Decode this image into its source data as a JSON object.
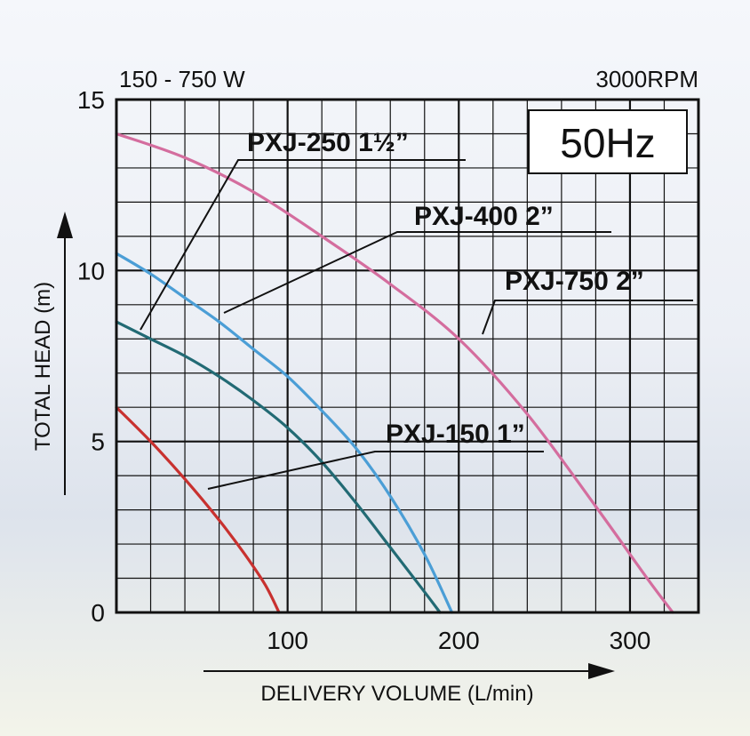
{
  "chart_data": {
    "type": "line",
    "power_label": "150 - 750 W",
    "speed_label": "3000RPM",
    "frequency_label": "50Hz",
    "xlabel": "DELIVERY VOLUME (L/min)",
    "ylabel": "TOTAL HEAD (m)",
    "xlim": [
      0,
      340
    ],
    "ylim": [
      0,
      15
    ],
    "x_ticks": [
      100,
      200,
      300
    ],
    "y_ticks": [
      0,
      5,
      10,
      15
    ],
    "grid": true,
    "series": [
      {
        "name": "PXJ-150 1”",
        "color": "#c8312f",
        "points": [
          [
            0,
            6.0
          ],
          [
            20,
            5.0
          ],
          [
            40,
            3.9
          ],
          [
            60,
            2.7
          ],
          [
            75,
            1.7
          ],
          [
            87,
            0.8
          ],
          [
            95,
            0
          ]
        ]
      },
      {
        "name": "PXJ-250 1½”",
        "color": "#226a74",
        "points": [
          [
            0,
            8.5
          ],
          [
            20,
            8.0
          ],
          [
            40,
            7.5
          ],
          [
            60,
            6.9
          ],
          [
            80,
            6.2
          ],
          [
            100,
            5.4
          ],
          [
            120,
            4.4
          ],
          [
            140,
            3.2
          ],
          [
            160,
            1.9
          ],
          [
            180,
            0.6
          ],
          [
            189,
            0
          ]
        ]
      },
      {
        "name": "PXJ-400 2”",
        "color": "#4b9ed6",
        "points": [
          [
            0,
            10.5
          ],
          [
            20,
            9.9
          ],
          [
            40,
            9.2
          ],
          [
            60,
            8.5
          ],
          [
            80,
            7.7
          ],
          [
            100,
            6.9
          ],
          [
            120,
            5.9
          ],
          [
            140,
            4.8
          ],
          [
            160,
            3.4
          ],
          [
            180,
            1.7
          ],
          [
            196,
            0
          ]
        ]
      },
      {
        "name": "PXJ-750 2”",
        "color": "#d46d9e",
        "points": [
          [
            0,
            14.0
          ],
          [
            40,
            13.3
          ],
          [
            80,
            12.3
          ],
          [
            120,
            11.0
          ],
          [
            160,
            9.6
          ],
          [
            200,
            8.0
          ],
          [
            240,
            5.8
          ],
          [
            280,
            3.1
          ],
          [
            310,
            1.0
          ],
          [
            325,
            0
          ]
        ]
      }
    ]
  }
}
